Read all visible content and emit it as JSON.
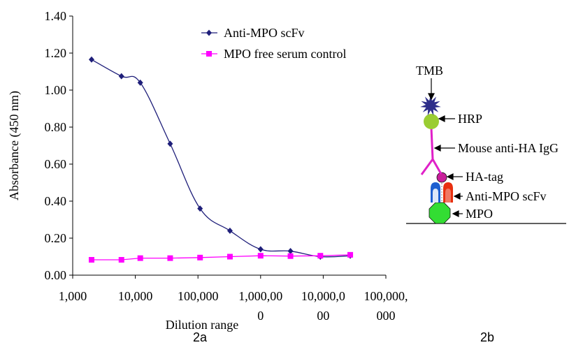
{
  "chart_data": {
    "type": "line",
    "xscale": "log",
    "xlim": [
      1000,
      100000000
    ],
    "ylim": [
      0,
      1.4
    ],
    "ylabel": "Absorbance (450 nm)",
    "xlabel": "Dilution range",
    "yticks": [
      "0.00",
      "0.20",
      "0.40",
      "0.60",
      "0.80",
      "1.00",
      "1.20",
      "1.40"
    ],
    "xticks": [
      {
        "value": 1000,
        "lines": [
          "1,000"
        ]
      },
      {
        "value": 10000,
        "lines": [
          "10,000"
        ]
      },
      {
        "value": 100000,
        "lines": [
          "100,000"
        ]
      },
      {
        "value": 1000000,
        "lines": [
          "1,000,00",
          "0"
        ]
      },
      {
        "value": 10000000,
        "lines": [
          "10,000,0",
          "00"
        ]
      },
      {
        "value": 100000000,
        "lines": [
          "100,000,",
          "000"
        ]
      }
    ],
    "legend_position": "top-center",
    "grid": false,
    "series": [
      {
        "name": "Anti-MPO scFv",
        "color": "#1f1f7a",
        "marker": "diamond",
        "smooth": true,
        "x": [
          2000,
          6000,
          12000,
          36000,
          108000,
          324000,
          1000000,
          3000000,
          9000000,
          27000000
        ],
        "y": [
          1.165,
          1.075,
          1.04,
          0.71,
          0.36,
          0.24,
          0.14,
          0.13,
          0.1,
          0.105
        ]
      },
      {
        "name": "MPO free serum control",
        "color": "#ff00ff",
        "marker": "square",
        "smooth": false,
        "x": [
          2000,
          6000,
          12000,
          36000,
          108000,
          324000,
          1000000,
          3000000,
          9000000,
          27000000
        ],
        "y": [
          0.083,
          0.083,
          0.092,
          0.092,
          0.095,
          0.1,
          0.105,
          0.103,
          0.105,
          0.11
        ]
      }
    ]
  },
  "diagram": {
    "labels": {
      "tmb": "TMB",
      "hrp": "HRP",
      "igg": "Mouse anti-HA IgG",
      "hatag": "HA-tag",
      "scfv": "Anti-MPO scFv",
      "mpo": "MPO"
    },
    "colors": {
      "tmb": "#2e2e8a",
      "hrp": "#9acd32",
      "igg": "#e020c8",
      "hatag": "#c8209a",
      "scfv_left": "#1e5fd0",
      "scfv_right": "#e83010",
      "mpo": "#33dd33"
    }
  },
  "captions": {
    "a": "2a",
    "b": "2b"
  }
}
